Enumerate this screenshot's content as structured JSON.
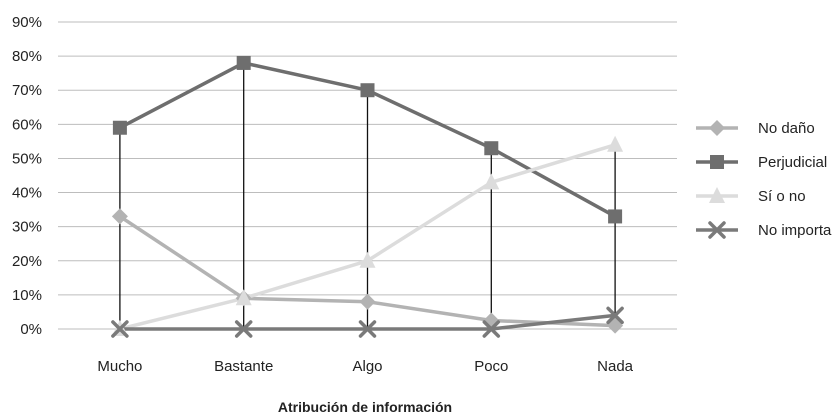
{
  "chart_data": {
    "type": "line",
    "categories": [
      "Mucho",
      "Bastante",
      "Algo",
      "Poco",
      "Nada"
    ],
    "xlabel": "Atribución de información",
    "ylabel": "",
    "ylim": [
      0,
      90
    ],
    "yticks": [
      0,
      10,
      20,
      30,
      40,
      50,
      60,
      70,
      80,
      90
    ],
    "ytick_labels": [
      "0%",
      "10%",
      "20%",
      "30%",
      "40%",
      "50%",
      "60%",
      "70%",
      "80%",
      "90%"
    ],
    "grid": true,
    "drop_lines": true,
    "legend_position": "right",
    "series": [
      {
        "name": "No daño",
        "values": [
          33,
          9,
          8,
          2.5,
          1
        ],
        "color": "#b3b3b3",
        "marker": "diamond"
      },
      {
        "name": "Perjudicial",
        "values": [
          59,
          78,
          70,
          53,
          33
        ],
        "color": "#6e6e6e",
        "marker": "square"
      },
      {
        "name": "Sí o no",
        "values": [
          0,
          9,
          20,
          43,
          54
        ],
        "color": "#dcdcdc",
        "marker": "triangle"
      },
      {
        "name": "No importa",
        "values": [
          0,
          0,
          0,
          0,
          4
        ],
        "color": "#7a7a7a",
        "marker": "x"
      }
    ]
  }
}
